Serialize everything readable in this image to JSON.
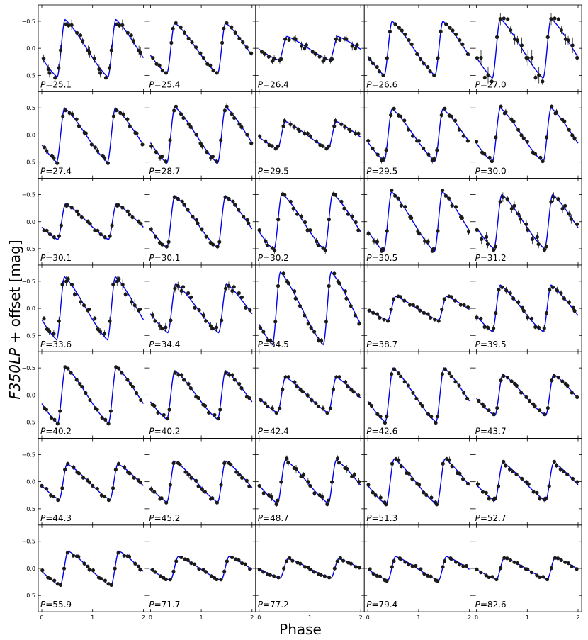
{
  "chart_data": {
    "type": "scatter",
    "layout": "grid of small multiples, 7 rows x 5 columns, shared axes",
    "xlabel": "Phase",
    "ylabel": "F350LP + offset [mag]",
    "ylabel_italic_part": "F350LP",
    "ylabel_rest": " + offset [mag]",
    "xlim": [
      0,
      2
    ],
    "ylim": [
      -0.8,
      0.8
    ],
    "y_inverted": true,
    "xticks": [
      "0",
      "1",
      "2"
    ],
    "yticks": [
      "−0.5",
      "0.0",
      "0.5"
    ],
    "ytick_values": [
      -0.5,
      0.0,
      0.5
    ],
    "panel_label_prefix": "P",
    "panel_label_eq": "=",
    "marker_color": "#1a1a1a",
    "model_color": "#0000ee",
    "model_curve": "fitted light-curve template (blue line)",
    "periods": [
      "25.1",
      "25.4",
      "26.4",
      "26.6",
      "27.0",
      "27.4",
      "28.7",
      "29.5",
      "29.5",
      "30.0",
      "30.1",
      "30.1",
      "30.2",
      "30.5",
      "31.2",
      "33.6",
      "34.4",
      "34.5",
      "38.7",
      "39.5",
      "40.2",
      "40.2",
      "42.4",
      "42.6",
      "43.7",
      "44.3",
      "45.2",
      "48.7",
      "51.3",
      "52.7",
      "55.9",
      "71.7",
      "77.2",
      "79.4",
      "82.6"
    ],
    "amplitudes_mag": [
      0.53,
      0.47,
      0.22,
      0.5,
      0.55,
      0.5,
      0.52,
      0.25,
      0.48,
      0.5,
      0.33,
      0.48,
      0.52,
      0.55,
      0.5,
      0.58,
      0.45,
      0.67,
      0.22,
      0.43,
      0.52,
      0.45,
      0.33,
      0.5,
      0.38,
      0.33,
      0.38,
      0.4,
      0.42,
      0.35,
      0.32,
      0.22,
      0.18,
      0.22,
      0.2
    ],
    "maximum_phase": [
      0.46,
      0.48,
      0.55,
      0.48,
      0.47,
      0.45,
      0.48,
      0.52,
      0.48,
      0.47,
      0.47,
      0.48,
      0.45,
      0.47,
      0.5,
      0.45,
      0.5,
      0.42,
      0.55,
      0.47,
      0.47,
      0.48,
      0.52,
      0.5,
      0.52,
      0.5,
      0.48,
      0.52,
      0.52,
      0.52,
      0.52,
      0.55,
      0.57,
      0.55,
      0.55
    ],
    "scatter_mag": [
      0.1,
      0.03,
      0.07,
      0.03,
      0.15,
      0.04,
      0.05,
      0.04,
      0.05,
      0.04,
      0.03,
      0.04,
      0.05,
      0.05,
      0.08,
      0.1,
      0.07,
      0.06,
      0.03,
      0.05,
      0.02,
      0.04,
      0.04,
      0.02,
      0.03,
      0.03,
      0.04,
      0.06,
      0.05,
      0.04,
      0.03,
      0.02,
      0.02,
      0.03,
      0.02
    ]
  }
}
